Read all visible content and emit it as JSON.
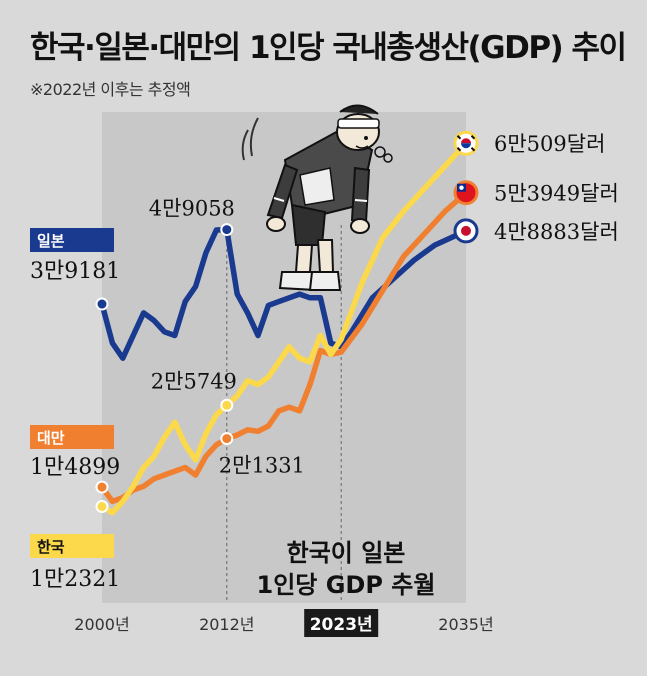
{
  "title": "한국·일본·대만의 1인당 국내총생산(GDP) 추이",
  "subtitle": "※2022년 이후는 추정액",
  "chart_data": {
    "type": "line",
    "title": "한국·일본·대만의 1인당 국내총생산(GDP) 추이",
    "subtitle": "※2022년 이후는 추정액",
    "unit": "달러",
    "x_range": [
      2000,
      2035
    ],
    "y_range": [
      10000,
      62000
    ],
    "x_ticks": [
      {
        "year": 2000,
        "label": "2000년"
      },
      {
        "year": 2012,
        "label": "2012년"
      },
      {
        "year": 2023,
        "label": "2023년",
        "highlight": true
      },
      {
        "year": 2035,
        "label": "2035년"
      }
    ],
    "series": [
      {
        "name": "일본",
        "color": "#1a3a8f",
        "x": [
          2000,
          2001,
          2002,
          2003,
          2004,
          2005,
          2006,
          2007,
          2008,
          2009,
          2010,
          2011,
          2012,
          2013,
          2014,
          2015,
          2016,
          2017,
          2018,
          2019,
          2020,
          2021,
          2022,
          2023,
          2024,
          2026,
          2028,
          2030,
          2032,
          2035
        ],
        "y": [
          39181,
          34000,
          32000,
          35000,
          38000,
          37000,
          35500,
          35000,
          39500,
          41500,
          46000,
          49000,
          49058,
          40500,
          38000,
          35000,
          39000,
          39500,
          40000,
          40500,
          40000,
          40000,
          34000,
          33500,
          35500,
          40000,
          42500,
          45000,
          47000,
          48883
        ],
        "start_label": "3만9181",
        "peak": {
          "x": 2012,
          "y": 49058,
          "label": "4만9058"
        },
        "end_label": "4만8883달러"
      },
      {
        "name": "대만",
        "color": "#f07f30",
        "x": [
          2000,
          2001,
          2002,
          2003,
          2004,
          2005,
          2006,
          2007,
          2008,
          2009,
          2010,
          2011,
          2012,
          2013,
          2014,
          2015,
          2016,
          2017,
          2018,
          2019,
          2020,
          2021,
          2022,
          2023,
          2025,
          2027,
          2029,
          2031,
          2033,
          2035
        ],
        "y": [
          14899,
          13000,
          13500,
          14500,
          15000,
          16000,
          16500,
          17000,
          17500,
          16500,
          19000,
          20500,
          21331,
          21800,
          22500,
          22300,
          23000,
          25000,
          25500,
          25000,
          28500,
          33000,
          32500,
          32800,
          36500,
          41000,
          45500,
          48500,
          51500,
          53949
        ],
        "start_label": "1만4899",
        "mid": {
          "x": 2012,
          "y": 21331,
          "label": "2만1331"
        },
        "end_label": "5만3949달러"
      },
      {
        "name": "한국",
        "color": "#fbd94a",
        "x": [
          2000,
          2001,
          2002,
          2003,
          2004,
          2005,
          2006,
          2007,
          2008,
          2009,
          2010,
          2011,
          2012,
          2013,
          2014,
          2015,
          2016,
          2017,
          2018,
          2019,
          2020,
          2021,
          2022,
          2023,
          2025,
          2027,
          2029,
          2031,
          2033,
          2035
        ],
        "y": [
          12321,
          11500,
          13000,
          15000,
          17500,
          19000,
          21500,
          23500,
          20500,
          18500,
          22000,
          24500,
          25749,
          27000,
          29000,
          28500,
          29500,
          31500,
          33500,
          32000,
          31500,
          35000,
          32500,
          34500,
          42000,
          48000,
          51500,
          54500,
          57500,
          60509
        ],
        "start_label": "1만2321",
        "mid": {
          "x": 2012,
          "y": 25749,
          "label": "2만5749"
        },
        "end_label": "6만509달러"
      }
    ],
    "annotation_lines": [
      "한국이 일본",
      "1인당 GDP 추월"
    ]
  }
}
